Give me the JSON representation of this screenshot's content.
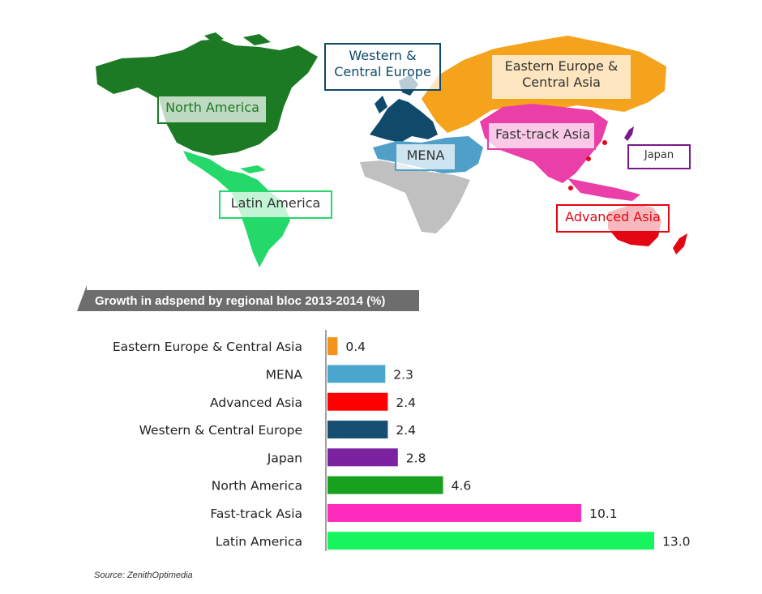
{
  "regions": [
    {
      "id": "north-america",
      "text": "North America",
      "color": "#1c7a24"
    },
    {
      "id": "latin-america",
      "text": "Latin America",
      "color": "#24d86a"
    },
    {
      "id": "western-central-europe",
      "text": "Western &\nCentral Europe",
      "color": "#0f4a6a"
    },
    {
      "id": "eastern-europe-central-asia",
      "text": "Eastern Europe &\nCentral Asia",
      "color": "#f5a21c"
    },
    {
      "id": "mena",
      "text": "MENA",
      "color": "#4f9fc8"
    },
    {
      "id": "fast-track-asia",
      "text": "Fast-track Asia",
      "color": "#ea3fa8"
    },
    {
      "id": "japan",
      "text": "Japan",
      "color": "#7a1a8a"
    },
    {
      "id": "advanced-asia",
      "text": "Advanced Asia",
      "color": "#e30613"
    }
  ],
  "chart_data": {
    "type": "bar",
    "orientation": "horizontal",
    "title": "Growth in adspend by regional bloc 2013-2014 (%)",
    "categories": [
      "Eastern Europe & Central Asia",
      "MENA",
      "Advanced Asia",
      "Western & Central Europe",
      "Japan",
      "North America",
      "Fast-track Asia",
      "Latin America"
    ],
    "values": [
      0.4,
      2.3,
      2.4,
      2.4,
      2.8,
      4.6,
      10.1,
      13.0
    ],
    "data_labels": [
      "0.4",
      "2.3",
      "2.4",
      "2.4",
      "2.8",
      "4.6",
      "10.1",
      "13.0"
    ],
    "colors": [
      "#f4941c",
      "#4aa6cc",
      "#ff0000",
      "#174f73",
      "#7a22a0",
      "#17a11f",
      "#ff2bbd",
      "#17f55e"
    ],
    "xlim": [
      0,
      13.0
    ],
    "grid": false,
    "legend": false
  },
  "source": "Source: ZenithOptimedia"
}
